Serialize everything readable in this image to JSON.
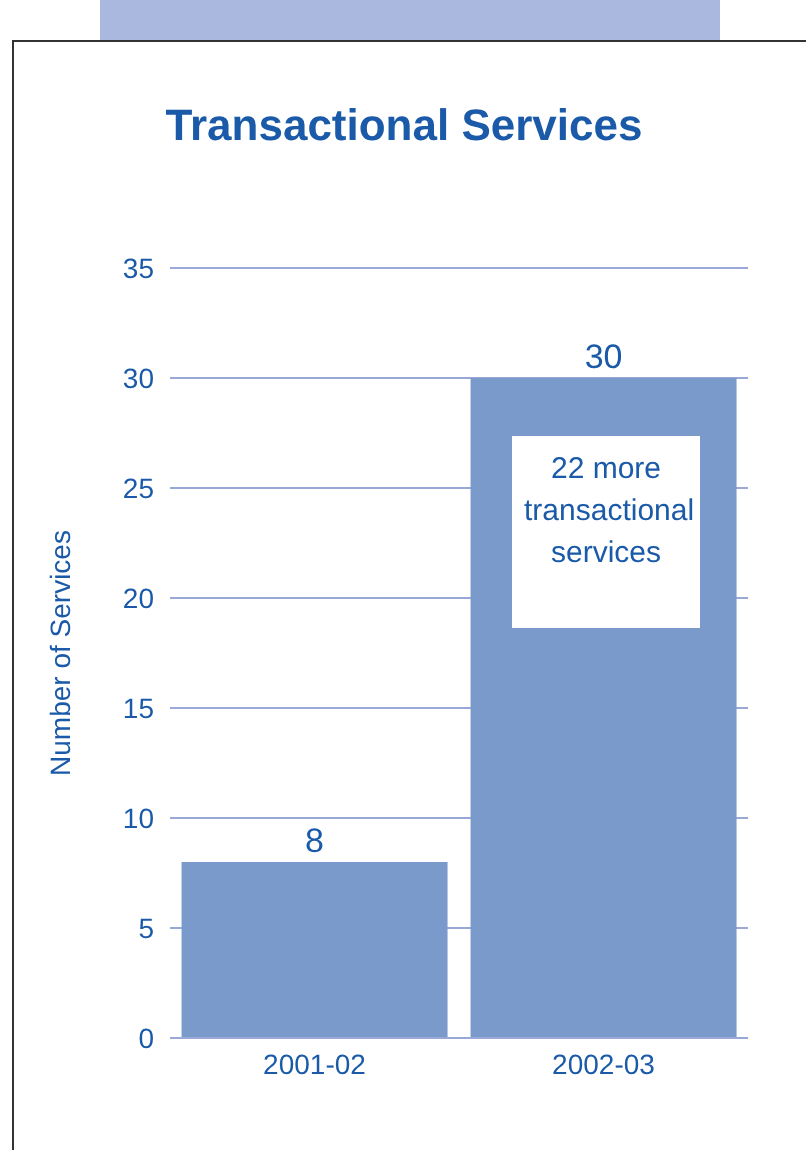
{
  "chart_data": {
    "type": "bar",
    "title": "Transactional Services",
    "ylabel": "Number of Services",
    "categories": [
      "2001-02",
      "2002-03"
    ],
    "values": [
      8,
      30
    ],
    "color": "#7b9acc",
    "ylim": [
      0,
      35
    ],
    "yticks": [
      0,
      5,
      10,
      15,
      20,
      25,
      30,
      35
    ],
    "grid": "y",
    "data_labels": true,
    "annotations": [
      "22 more transactional services"
    ]
  }
}
